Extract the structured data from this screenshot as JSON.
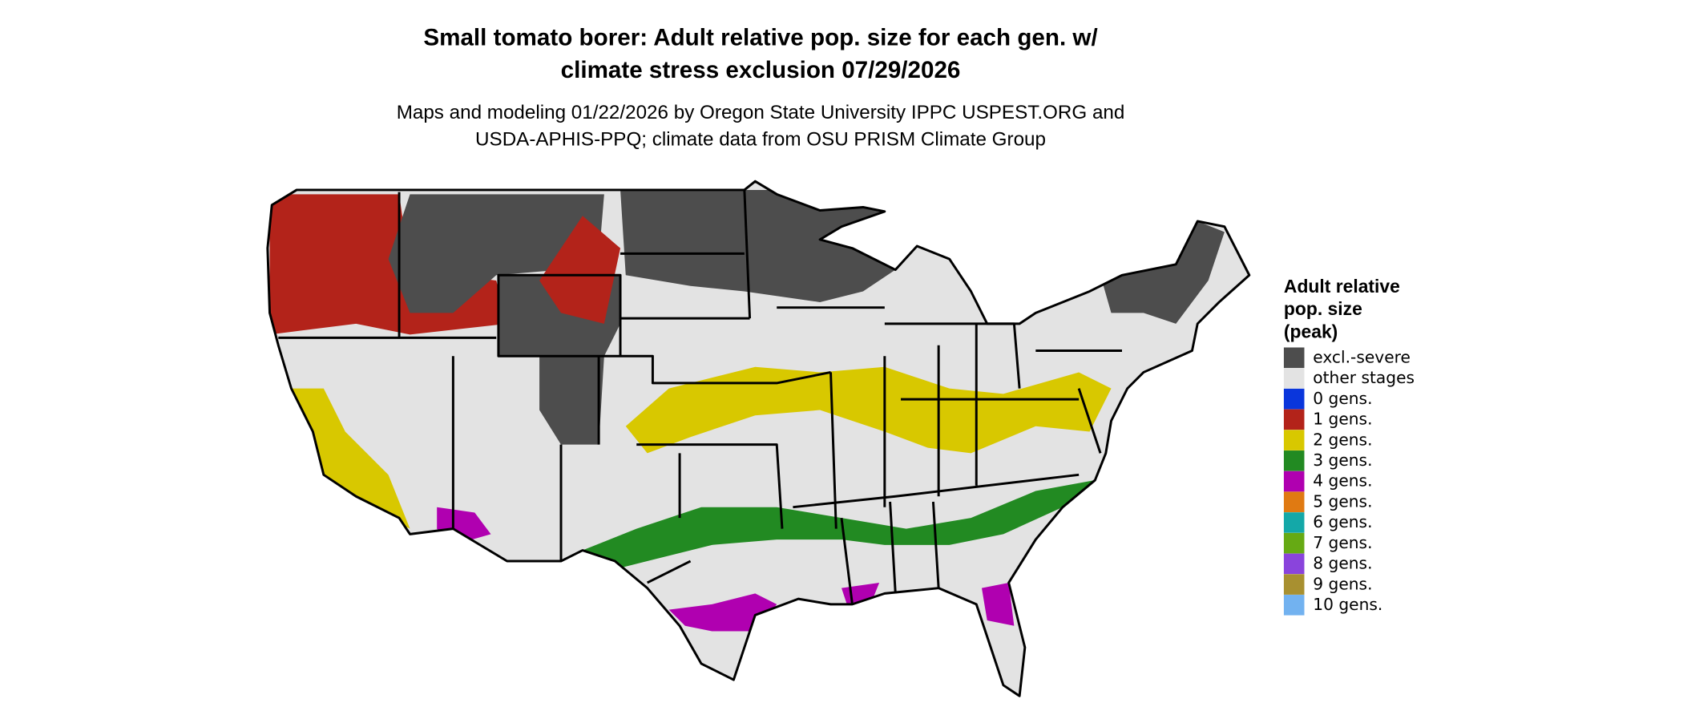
{
  "header": {
    "title_lines": [
      "Small tomato borer: Adult relative pop. size for each gen. w/",
      "climate stress exclusion 07/29/2026"
    ],
    "subtitle_lines": [
      "Maps and modeling 01/22/2026 by Oregon State University IPPC USPEST.ORG and",
      "USDA-APHIS-PPQ; climate data from OSU PRISM Climate Group"
    ]
  },
  "legend": {
    "title_lines": [
      "Adult relative",
      "pop. size",
      "(peak)"
    ],
    "items": [
      {
        "label": "excl.-severe",
        "color": "#4d4d4d"
      },
      {
        "label": "other stages",
        "color": "#e3e3e3"
      },
      {
        "label": "0 gens.",
        "color": "#0a36dc"
      },
      {
        "label": "1 gens.",
        "color": "#b3231a"
      },
      {
        "label": "2 gens.",
        "color": "#d8c800"
      },
      {
        "label": "3 gens.",
        "color": "#228a22"
      },
      {
        "label": "4 gens.",
        "color": "#b000b0"
      },
      {
        "label": "5 gens.",
        "color": "#e07a12"
      },
      {
        "label": "6 gens.",
        "color": "#14a8a8"
      },
      {
        "label": "7 gens.",
        "color": "#66aa14"
      },
      {
        "label": "8 gens.",
        "color": "#8a44dc"
      },
      {
        "label": "9 gens.",
        "color": "#a89030"
      },
      {
        "label": "10 gens.",
        "color": "#72b2f0"
      }
    ]
  }
}
